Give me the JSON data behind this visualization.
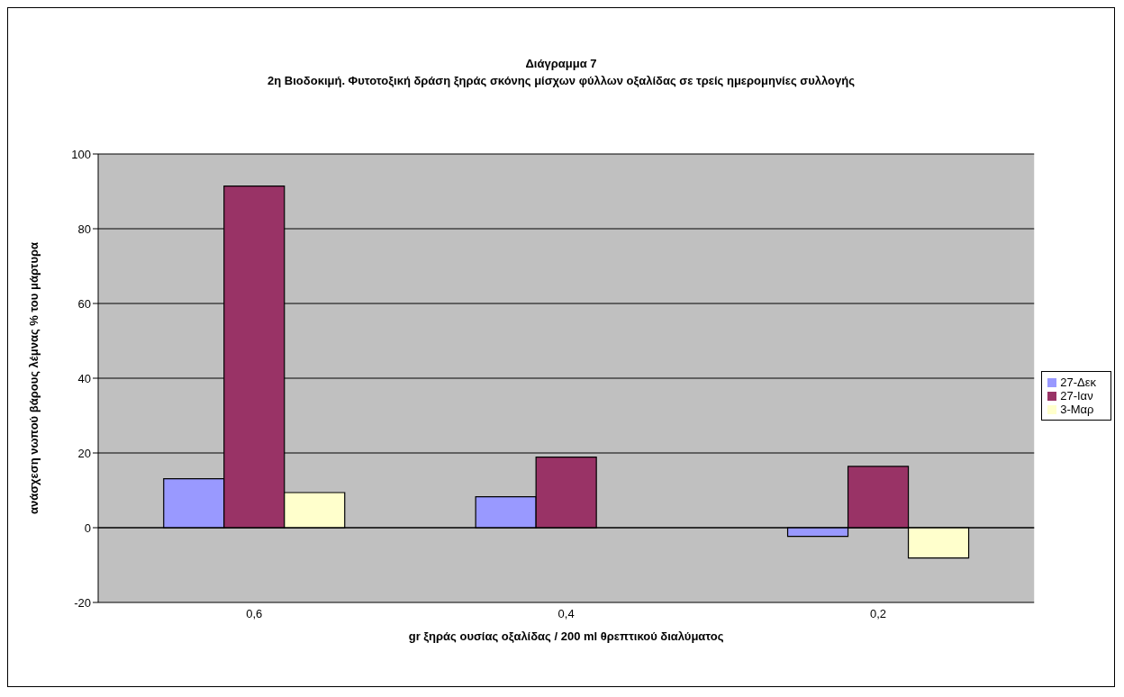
{
  "chart_data": {
    "type": "bar",
    "title": "Διάγραμμα 7",
    "subtitle": "2η Βιοδοκιμή. Φυτοτοξική δράση ξηράς σκόνης μίσχων φύλλων οξαλίδας σε τρείς ημερομηνίες συλλογής",
    "xlabel": "gr ξηράς ουσίας οξαλίδας / 200 ml θρεπτικού διαλύματος",
    "ylabel": "ανάσχεση νωπού βάρους λέμνας % του μάρτυρα",
    "categories": [
      "0,6",
      "0,4",
      "0,2"
    ],
    "series": [
      {
        "name": "27-Δεκ",
        "color": "#9999ff",
        "values": [
          13.1,
          8.3,
          -2.3
        ]
      },
      {
        "name": "27-Ιαν",
        "color": "#993366",
        "values": [
          91.4,
          18.9,
          16.4
        ]
      },
      {
        "name": "3-Μαρ",
        "color": "#ffffcc",
        "values": [
          9.4,
          null,
          -8.1
        ]
      }
    ],
    "ylim": [
      -20,
      100
    ],
    "yticks": [
      -20,
      0,
      20,
      40,
      60,
      80,
      100
    ],
    "grid": "y",
    "legend": "right"
  }
}
